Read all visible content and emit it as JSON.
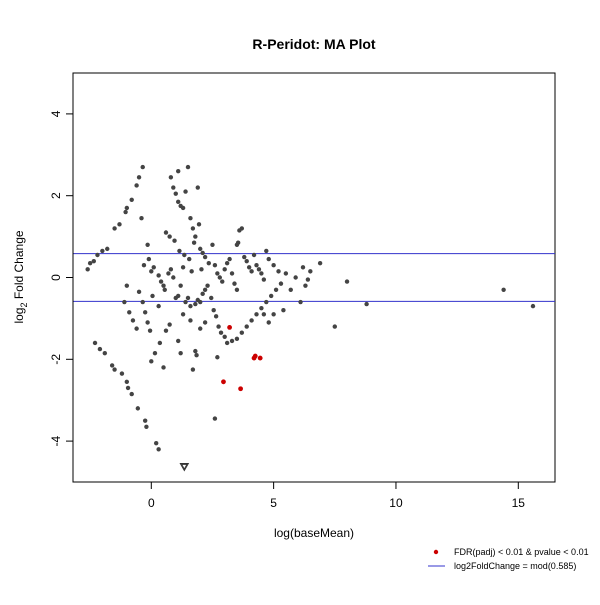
{
  "chart_data": {
    "type": "scatter",
    "title": "R-Peridot: MA Plot",
    "xlabel": "log(baseMean)",
    "ylabel_main": "log",
    "ylabel_sub": "2",
    "ylabel_rest": " Fold Change",
    "xlim": [
      -3.2,
      16.5
    ],
    "ylim": [
      -5.0,
      5.0
    ],
    "x_ticks": [
      0,
      5,
      10,
      15
    ],
    "y_ticks": [
      -4,
      -2,
      0,
      2,
      4
    ],
    "x_tick_labels": [
      "0",
      "5",
      "10",
      "15"
    ],
    "y_tick_labels": [
      "-4",
      "-2",
      "0",
      "2",
      "4"
    ],
    "threshold": 0.585,
    "legend_position": "bottom-right",
    "colors": {
      "point": "#444444",
      "significant": "#cc0000",
      "threshold_line": "#3333cc"
    },
    "series": [
      {
        "name": "FDR(padj) < 0.01 & pvalue < 0.01",
        "points": [
          [
            3.2,
            -1.22
          ],
          [
            4.2,
            -1.97
          ],
          [
            4.45,
            -1.97
          ],
          [
            4.25,
            -1.92
          ],
          [
            2.95,
            -2.55
          ],
          [
            3.65,
            -2.72
          ]
        ]
      },
      {
        "name": "log2FoldChange = mod(0.585)",
        "values": [
          0.585,
          -0.585
        ]
      }
    ],
    "points": [
      [
        -2.6,
        0.2
      ],
      [
        -2.5,
        0.35
      ],
      [
        -2.35,
        0.4
      ],
      [
        -2.2,
        0.55
      ],
      [
        -2.0,
        0.65
      ],
      [
        -1.8,
        0.7
      ],
      [
        -1.5,
        1.2
      ],
      [
        -1.3,
        1.3
      ],
      [
        -1.05,
        1.6
      ],
      [
        -1.0,
        1.7
      ],
      [
        -0.8,
        1.9
      ],
      [
        -0.6,
        2.25
      ],
      [
        -0.5,
        2.45
      ],
      [
        -0.35,
        2.7
      ],
      [
        -0.4,
        1.45
      ],
      [
        -0.3,
        0.3
      ],
      [
        -0.15,
        0.8
      ],
      [
        -0.1,
        0.45
      ],
      [
        0.0,
        0.15
      ],
      [
        0.1,
        0.25
      ],
      [
        0.3,
        0.05
      ],
      [
        0.4,
        -0.1
      ],
      [
        0.5,
        -0.2
      ],
      [
        0.55,
        -0.3
      ],
      [
        0.7,
        0.1
      ],
      [
        0.8,
        0.2
      ],
      [
        0.9,
        0.0
      ],
      [
        1.0,
        -0.5
      ],
      [
        1.1,
        -0.45
      ],
      [
        1.2,
        -0.2
      ],
      [
        1.3,
        0.25
      ],
      [
        1.4,
        -0.6
      ],
      [
        1.5,
        -0.5
      ],
      [
        1.6,
        -0.7
      ],
      [
        1.8,
        -0.65
      ],
      [
        1.9,
        -0.55
      ],
      [
        2.0,
        -0.6
      ],
      [
        2.1,
        -0.4
      ],
      [
        2.2,
        -0.3
      ],
      [
        2.3,
        -0.2
      ],
      [
        0.8,
        2.45
      ],
      [
        0.9,
        2.2
      ],
      [
        1.0,
        2.05
      ],
      [
        1.1,
        1.85
      ],
      [
        1.2,
        1.75
      ],
      [
        1.3,
        1.7
      ],
      [
        1.5,
        2.7
      ],
      [
        1.6,
        1.45
      ],
      [
        1.7,
        1.2
      ],
      [
        1.8,
        1.0
      ],
      [
        1.9,
        2.2
      ],
      [
        2.0,
        0.7
      ],
      [
        2.1,
        0.6
      ],
      [
        2.2,
        0.5
      ],
      [
        2.35,
        0.35
      ],
      [
        1.1,
        2.6
      ],
      [
        1.4,
        2.1
      ],
      [
        0.6,
        1.1
      ],
      [
        0.75,
        1.0
      ],
      [
        0.95,
        0.9
      ],
      [
        1.15,
        0.65
      ],
      [
        1.35,
        0.55
      ],
      [
        1.55,
        0.45
      ],
      [
        1.75,
        0.85
      ],
      [
        1.95,
        1.3
      ],
      [
        2.05,
        0.2
      ],
      [
        2.5,
        0.8
      ],
      [
        2.6,
        0.3
      ],
      [
        2.7,
        0.1
      ],
      [
        2.8,
        0.0
      ],
      [
        2.9,
        -0.1
      ],
      [
        3.0,
        0.2
      ],
      [
        3.1,
        0.35
      ],
      [
        3.2,
        0.45
      ],
      [
        3.3,
        0.1
      ],
      [
        3.4,
        -0.15
      ],
      [
        3.5,
        -0.3
      ],
      [
        3.6,
        1.15
      ],
      [
        3.7,
        1.2
      ],
      [
        3.8,
        0.5
      ],
      [
        3.9,
        0.4
      ],
      [
        4.0,
        0.25
      ],
      [
        4.1,
        0.15
      ],
      [
        4.2,
        0.55
      ],
      [
        4.3,
        0.3
      ],
      [
        4.4,
        0.2
      ],
      [
        4.5,
        0.1
      ],
      [
        4.6,
        -0.05
      ],
      [
        4.7,
        0.65
      ],
      [
        4.8,
        0.45
      ],
      [
        3.5,
        0.8
      ],
      [
        3.55,
        0.85
      ],
      [
        2.45,
        -0.5
      ],
      [
        2.55,
        -0.8
      ],
      [
        2.65,
        -0.95
      ],
      [
        2.75,
        -1.2
      ],
      [
        2.85,
        -1.35
      ],
      [
        3.0,
        -1.45
      ],
      [
        3.1,
        -1.6
      ],
      [
        3.3,
        -1.55
      ],
      [
        3.5,
        -1.5
      ],
      [
        3.7,
        -1.35
      ],
      [
        3.9,
        -1.2
      ],
      [
        4.1,
        -1.05
      ],
      [
        4.3,
        -0.9
      ],
      [
        4.5,
        -0.75
      ],
      [
        4.7,
        -0.6
      ],
      [
        4.9,
        -0.45
      ],
      [
        5.1,
        -0.3
      ],
      [
        5.3,
        -0.15
      ],
      [
        5.0,
        0.3
      ],
      [
        5.2,
        0.15
      ],
      [
        5.5,
        0.1
      ],
      [
        5.7,
        -0.3
      ],
      [
        5.0,
        -0.9
      ],
      [
        4.8,
        -1.1
      ],
      [
        4.6,
        -0.9
      ],
      [
        5.4,
        -0.8
      ],
      [
        6.1,
        -0.6
      ],
      [
        6.3,
        -0.2
      ],
      [
        6.2,
        0.25
      ],
      [
        6.5,
        0.15
      ],
      [
        6.9,
        0.35
      ],
      [
        7.5,
        -1.2
      ],
      [
        8.0,
        -0.1
      ],
      [
        8.8,
        -0.65
      ],
      [
        14.4,
        -0.3
      ],
      [
        15.6,
        -0.7
      ],
      [
        6.4,
        -0.05
      ],
      [
        5.9,
        0.0
      ],
      [
        -2.3,
        -1.6
      ],
      [
        -2.1,
        -1.75
      ],
      [
        -1.9,
        -1.85
      ],
      [
        -1.6,
        -2.15
      ],
      [
        -1.5,
        -2.25
      ],
      [
        -1.2,
        -2.35
      ],
      [
        -1.0,
        -2.55
      ],
      [
        -0.95,
        -2.7
      ],
      [
        -0.8,
        -2.85
      ],
      [
        -0.55,
        -3.2
      ],
      [
        -0.25,
        -3.5
      ],
      [
        -0.2,
        -3.65
      ],
      [
        0.2,
        -4.05
      ],
      [
        0.3,
        -4.2
      ],
      [
        0.0,
        -2.05
      ],
      [
        0.15,
        -1.85
      ],
      [
        0.35,
        -1.6
      ],
      [
        0.5,
        -2.2
      ],
      [
        0.6,
        -1.3
      ],
      [
        0.75,
        -1.15
      ],
      [
        1.1,
        -1.55
      ],
      [
        1.2,
        -1.85
      ],
      [
        1.7,
        -2.25
      ],
      [
        1.8,
        -1.8
      ],
      [
        1.85,
        -1.9
      ],
      [
        2.0,
        -1.25
      ],
      [
        2.2,
        -1.1
      ],
      [
        2.7,
        -1.95
      ],
      [
        2.6,
        -3.45
      ],
      [
        -1.0,
        -0.2
      ],
      [
        -1.1,
        -0.6
      ],
      [
        -0.9,
        -0.85
      ],
      [
        -0.75,
        -1.05
      ],
      [
        -0.6,
        -1.25
      ],
      [
        -0.5,
        -0.35
      ],
      [
        -0.35,
        -0.6
      ],
      [
        -0.25,
        -0.85
      ],
      [
        -0.15,
        -1.1
      ],
      [
        -0.05,
        -1.3
      ],
      [
        0.05,
        -0.45
      ],
      [
        0.3,
        -0.7
      ],
      [
        1.3,
        -0.9
      ],
      [
        1.6,
        -1.05
      ],
      [
        1.65,
        0.15
      ]
    ],
    "extreme_points": [
      [
        1.35,
        -4.62
      ]
    ]
  }
}
